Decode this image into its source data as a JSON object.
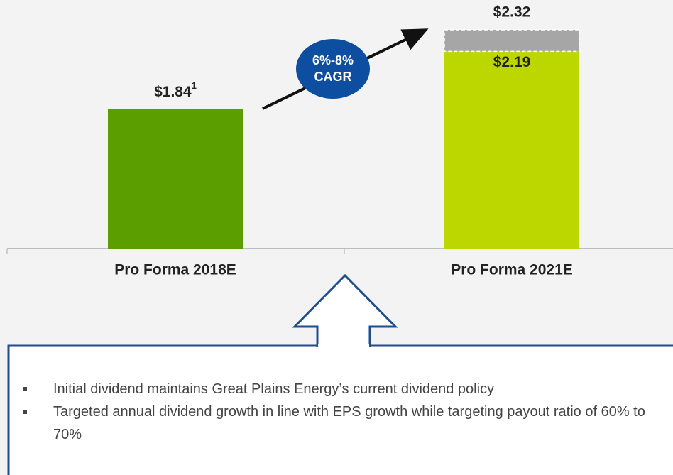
{
  "chart_data": {
    "type": "bar",
    "categories": [
      "Pro Forma 2018E",
      "Pro Forma 2021E"
    ],
    "values": [
      1.84,
      2.19
    ],
    "value_labels": [
      "$1.84",
      "$2.19"
    ],
    "footnote_marks": [
      "1",
      null
    ],
    "high_values": [
      null,
      2.32
    ],
    "high_value_labels": [
      null,
      "$2.32"
    ],
    "colors": [
      "#5b9e00",
      "#bcd600"
    ],
    "range_color": "#a6a6a6",
    "ylim": [
      1.0,
      2.5
    ],
    "annotation": [
      "6%-8%",
      "CAGR"
    ],
    "annotation_color": "#0d4ea0"
  },
  "notes": {
    "bullets": [
      "Initial dividend maintains Great Plains Energy’s current dividend policy",
      "Targeted annual dividend growth in line with EPS growth while targeting payout ratio of 60% to 70%"
    ]
  }
}
